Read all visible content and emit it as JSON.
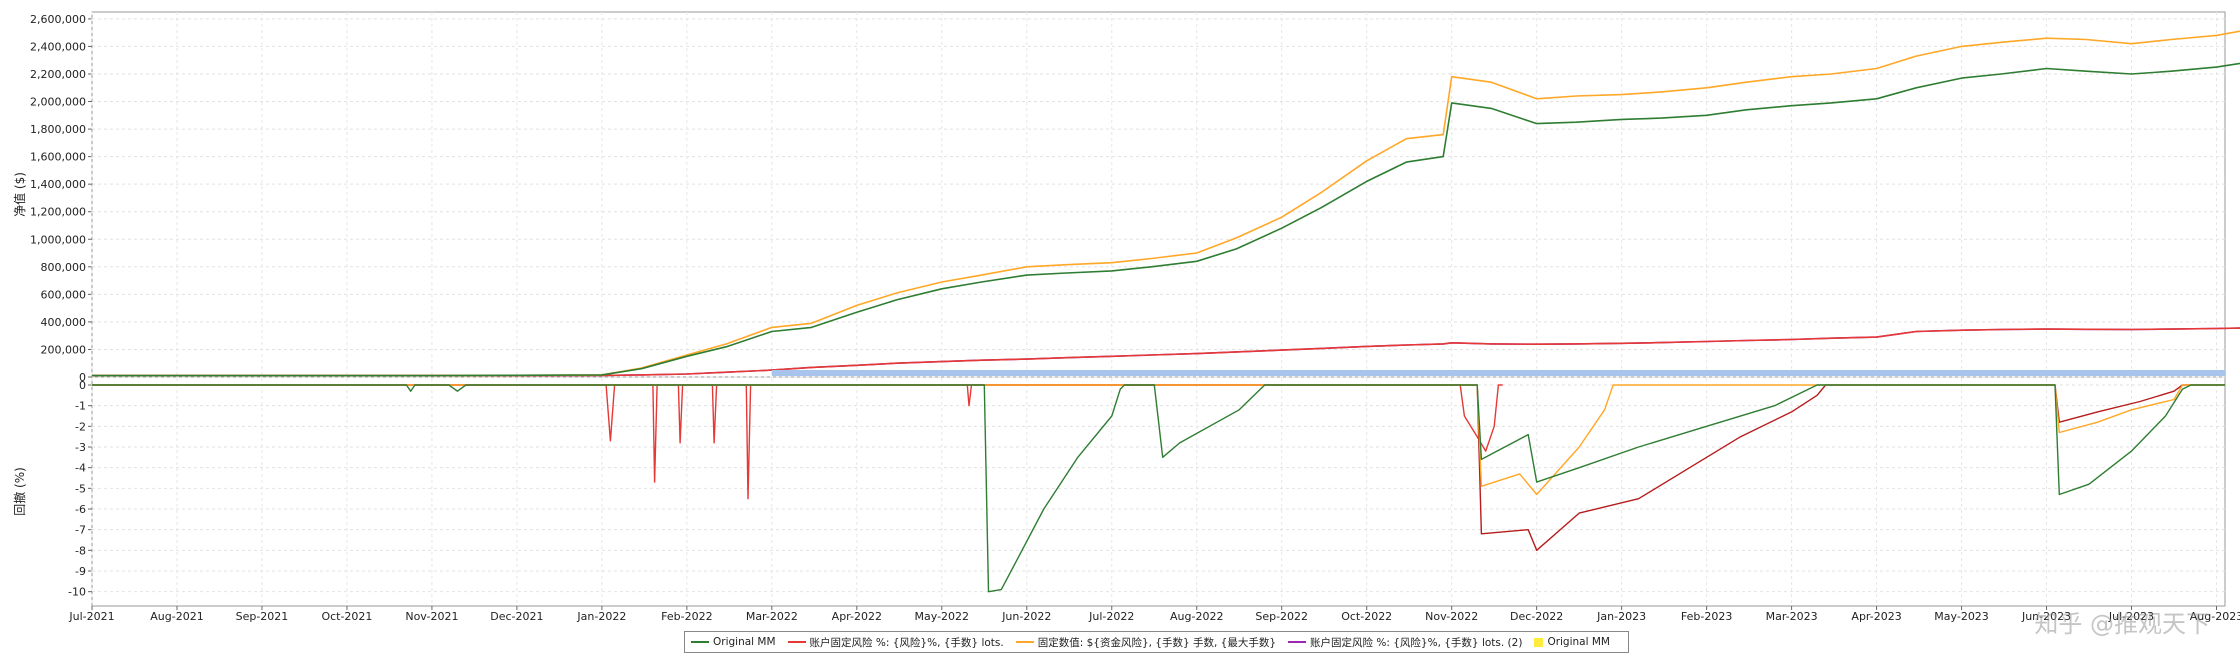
{
  "chart_data": [
    {
      "panel": "equity",
      "type": "line",
      "ylabel": "净值 ($)",
      "ylim": [
        0,
        2650000
      ],
      "yticks": [
        0,
        200000,
        400000,
        600000,
        800000,
        1000000,
        1200000,
        1400000,
        1600000,
        1800000,
        2000000,
        2200000,
        2400000,
        2600000
      ],
      "ytick_labels": [
        "0",
        "200,000",
        "400,000",
        "600,000",
        "800,000",
        "1,000,000",
        "1,200,000",
        "1,400,000",
        "1,600,000",
        "1,800,000",
        "2,000,000",
        "2,200,000",
        "2,400,000",
        "2,600,000"
      ],
      "grid": true,
      "x": [
        "2021-07",
        "2021-08",
        "2021-09",
        "2021-10",
        "2021-11",
        "2021-12",
        "2022-01",
        "2022-01-15",
        "2022-02",
        "2022-02-15",
        "2022-03",
        "2022-03-15",
        "2022-04",
        "2022-04-15",
        "2022-05",
        "2022-05-15",
        "2022-06",
        "2022-06-15",
        "2022-07",
        "2022-07-15",
        "2022-08",
        "2022-08-15",
        "2022-09",
        "2022-09-15",
        "2022-10",
        "2022-10-15",
        "2022-10-28",
        "2022-11",
        "2022-11-15",
        "2022-12",
        "2022-12-15",
        "2023-01",
        "2023-01-15",
        "2023-02",
        "2023-02-15",
        "2023-03",
        "2023-03-15",
        "2023-04",
        "2023-04-15",
        "2023-05",
        "2023-05-15",
        "2023-06",
        "2023-06-15",
        "2023-07",
        "2023-07-15",
        "2023-08",
        "2023-08-20"
      ],
      "series": [
        {
          "name": "Original MM",
          "color": "#2e7d32",
          "values": [
            10000,
            10000,
            10000,
            10000,
            10000,
            12000,
            15000,
            60000,
            150000,
            220000,
            330000,
            360000,
            470000,
            560000,
            640000,
            690000,
            740000,
            755000,
            770000,
            800000,
            840000,
            930000,
            1080000,
            1230000,
            1420000,
            1560000,
            1600000,
            1990000,
            1950000,
            1840000,
            1850000,
            1870000,
            1880000,
            1900000,
            1940000,
            1970000,
            1990000,
            2020000,
            2100000,
            2170000,
            2200000,
            2240000,
            2220000,
            2200000,
            2220000,
            2250000,
            2310000
          ]
        },
        {
          "name": "账户固定风险 %: {风险}%, {手数} lots.",
          "color": "#e53935",
          "values": [
            10000,
            10000,
            10000,
            10000,
            10000,
            10000,
            11000,
            15000,
            22000,
            35000,
            50000,
            70000,
            85000,
            100000,
            112000,
            122000,
            130000,
            140000,
            150000,
            160000,
            170000,
            182000,
            195000,
            208000,
            222000,
            232000,
            240000,
            248000,
            240000,
            238000,
            240000,
            245000,
            250000,
            258000,
            265000,
            272000,
            282000,
            290000,
            330000,
            340000,
            345000,
            348000,
            346000,
            345000,
            348000,
            352000,
            360000
          ]
        },
        {
          "name": "固定数值: ${资金风险}, {手数} 手数, {最大手数}",
          "color": "#ffa726",
          "values": [
            10000,
            10000,
            10000,
            10000,
            10000,
            12000,
            15000,
            65000,
            160000,
            240000,
            360000,
            390000,
            520000,
            610000,
            690000,
            740000,
            800000,
            815000,
            830000,
            860000,
            900000,
            1010000,
            1160000,
            1340000,
            1570000,
            1730000,
            1760000,
            2180000,
            2140000,
            2020000,
            2040000,
            2050000,
            2070000,
            2100000,
            2140000,
            2180000,
            2200000,
            2240000,
            2330000,
            2400000,
            2430000,
            2460000,
            2450000,
            2420000,
            2450000,
            2480000,
            2550000
          ]
        },
        {
          "name": "账户固定风险 %: {风险}%, {手数} lots.  (2)",
          "color": "#9c27b0",
          "values": [
            10000,
            10000,
            10000,
            10000,
            10000,
            10000,
            11000,
            15000,
            22000,
            35000,
            50000,
            70000,
            85000,
            100000,
            112000,
            122000,
            130000,
            140000,
            150000,
            160000,
            170000,
            182000,
            195000,
            208000,
            222000,
            232000,
            240000,
            248000,
            240000,
            238000,
            240000,
            245000,
            250000,
            258000,
            265000,
            272000,
            282000,
            290000,
            330000,
            340000,
            345000,
            348000,
            346000,
            345000,
            348000,
            352000,
            360000
          ]
        }
      ],
      "extra_series": {
        "name": "Original MM",
        "color": "#ffeb3b",
        "marker": "square"
      }
    },
    {
      "panel": "drawdown",
      "type": "line",
      "ylabel": "回撤 (%)",
      "ylim": [
        -10.5,
        0
      ],
      "yticks": [
        0,
        -1,
        -2,
        -3,
        -4,
        -5,
        -6,
        -7,
        -8,
        -9,
        -10
      ],
      "grid": true,
      "x_labels": [
        "Jul-2021",
        "Aug-2021",
        "Sep-2021",
        "Oct-2021",
        "Nov-2021",
        "Dec-2021",
        "Jan-2022",
        "Feb-2022",
        "Mar-2022",
        "Apr-2022",
        "May-2022",
        "Jun-2022",
        "Jul-2022",
        "Aug-2022",
        "Sep-2022",
        "Oct-2022",
        "Nov-2022",
        "Dec-2022",
        "Jan-2023",
        "Feb-2023",
        "Mar-2023",
        "Apr-2023",
        "May-2023",
        "Jun-2023",
        "Jul-2023",
        "Aug-2023"
      ],
      "band_color": "#a8c4ec",
      "series": [
        {
          "name": "Original MM",
          "color": "#2e7d32",
          "points": [
            [
              0,
              0
            ],
            [
              3.7,
              0
            ],
            [
              3.75,
              -0.3
            ],
            [
              3.8,
              0
            ],
            [
              4.2,
              0
            ],
            [
              4.3,
              -0.3
            ],
            [
              4.4,
              0
            ],
            [
              10.5,
              0
            ],
            [
              10.55,
              -10
            ],
            [
              10.7,
              -9.9
            ],
            [
              11.2,
              -6
            ],
            [
              11.6,
              -3.5
            ],
            [
              12.0,
              -1.5
            ],
            [
              12.1,
              -0.2
            ],
            [
              12.15,
              0
            ],
            [
              12.5,
              0
            ],
            [
              12.6,
              -3.5
            ],
            [
              12.8,
              -2.8
            ],
            [
              13.5,
              -1.2
            ],
            [
              13.8,
              0
            ],
            [
              16.3,
              0
            ],
            [
              16.35,
              -3.6
            ],
            [
              16.9,
              -2.4
            ],
            [
              17.0,
              -4.7
            ],
            [
              17.5,
              -4.0
            ],
            [
              18.2,
              -3.0
            ],
            [
              19.0,
              -2.0
            ],
            [
              19.8,
              -1.0
            ],
            [
              20.2,
              -0.2
            ],
            [
              20.3,
              0
            ],
            [
              23.1,
              0
            ],
            [
              23.15,
              -5.3
            ],
            [
              23.5,
              -4.8
            ],
            [
              24.0,
              -3.2
            ],
            [
              24.4,
              -1.5
            ],
            [
              24.6,
              -0.2
            ],
            [
              24.7,
              0
            ],
            [
              25.1,
              0
            ]
          ]
        },
        {
          "name": "账户固定风险 %: {风险}%, {手数} lots.",
          "color": "#e53935",
          "points": [
            [
              0,
              0
            ],
            [
              6.05,
              0
            ],
            [
              6.1,
              -2.7
            ],
            [
              6.15,
              0
            ],
            [
              6.6,
              0
            ],
            [
              6.62,
              -4.7
            ],
            [
              6.65,
              0
            ],
            [
              6.9,
              0
            ],
            [
              6.92,
              -2.8
            ],
            [
              6.95,
              0
            ],
            [
              7.3,
              0
            ],
            [
              7.32,
              -2.8
            ],
            [
              7.35,
              0
            ],
            [
              7.7,
              0
            ],
            [
              7.72,
              -5.5
            ],
            [
              7.75,
              0
            ],
            [
              10.3,
              0
            ],
            [
              10.32,
              -1.0
            ],
            [
              10.35,
              0
            ],
            [
              16.1,
              0
            ],
            [
              16.15,
              -1.5
            ],
            [
              16.3,
              -2.5
            ],
            [
              16.4,
              -3.2
            ],
            [
              16.5,
              -2.0
            ],
            [
              16.55,
              0
            ],
            [
              16.6,
              0
            ]
          ]
        },
        {
          "name": "固定数值: ${资金风险}, {手数} 手数, {最大手数}",
          "color": "#ffa726",
          "points": [
            [
              0,
              0
            ],
            [
              16.3,
              0
            ],
            [
              16.35,
              -4.9
            ],
            [
              16.8,
              -4.3
            ],
            [
              17.0,
              -5.3
            ],
            [
              17.5,
              -3.0
            ],
            [
              17.8,
              -1.2
            ],
            [
              17.9,
              0
            ],
            [
              23.1,
              0
            ],
            [
              23.15,
              -2.3
            ],
            [
              23.6,
              -1.8
            ],
            [
              24.0,
              -1.2
            ],
            [
              24.5,
              -0.7
            ],
            [
              24.6,
              0
            ],
            [
              25.1,
              0
            ]
          ]
        },
        {
          "name": "账户固定风险 %: {风险}%, {手数} lots.  (2)",
          "color": "#b71c1c",
          "points": [
            [
              0,
              0
            ],
            [
              16.3,
              0
            ],
            [
              16.35,
              -7.2
            ],
            [
              16.9,
              -7.0
            ],
            [
              17.0,
              -8.0
            ],
            [
              17.5,
              -6.2
            ],
            [
              18.2,
              -5.5
            ],
            [
              18.8,
              -4.0
            ],
            [
              19.4,
              -2.5
            ],
            [
              20.0,
              -1.3
            ],
            [
              20.3,
              -0.5
            ],
            [
              20.4,
              0
            ],
            [
              23.1,
              0
            ],
            [
              23.15,
              -1.8
            ],
            [
              23.6,
              -1.3
            ],
            [
              24.1,
              -0.8
            ],
            [
              24.5,
              -0.3
            ],
            [
              24.6,
              0
            ],
            [
              25.1,
              0
            ]
          ]
        }
      ]
    }
  ],
  "legend": {
    "items": [
      {
        "label": "Original MM",
        "color": "#2e7d32",
        "kind": "line"
      },
      {
        "label": "账户固定风险 %: {风险}%, {手数} lots.",
        "color": "#e53935",
        "kind": "line"
      },
      {
        "label": "固定数值: ${资金风险}, {手数} 手数, {最大手数}",
        "color": "#ffa726",
        "kind": "line"
      },
      {
        "label": "账户固定风险 %: {风险}%, {手数} lots.  (2)",
        "color": "#9c27b0",
        "kind": "line"
      },
      {
        "label": "Original MM",
        "color": "#ffeb3b",
        "kind": "box"
      }
    ]
  },
  "watermark": "知乎 @推观天下"
}
